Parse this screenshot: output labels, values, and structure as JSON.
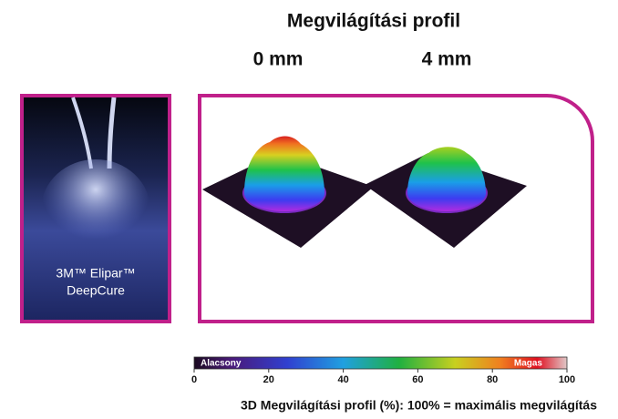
{
  "header": {
    "title": "Megvilágítási profil",
    "distances": [
      "0 mm",
      "4 mm"
    ]
  },
  "product": {
    "lines": [
      "3M™ Elipar™",
      "DeepCure"
    ]
  },
  "colorbar": {
    "low_label": "Alacsony",
    "high_label": "Magas",
    "range": [
      0,
      100
    ],
    "ticks": [
      0,
      20,
      40,
      60,
      80,
      100
    ]
  },
  "caption": "3D Megvilágítási profil (%): 100% = maximális megvilágítás"
}
